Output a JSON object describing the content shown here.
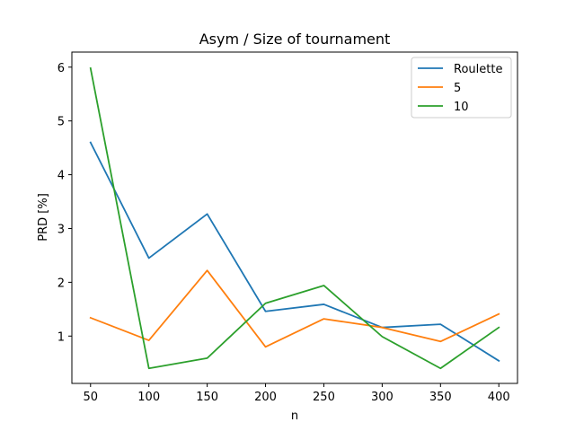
{
  "chart_data": {
    "type": "line",
    "title": "Asym / Size of tournament",
    "xlabel": "n",
    "ylabel": "PRD [%]",
    "x": [
      50,
      100,
      150,
      200,
      250,
      300,
      350,
      400
    ],
    "xlim": [
      34,
      416
    ],
    "ylim": [
      0.12,
      6.28
    ],
    "xticks": [
      50,
      100,
      150,
      200,
      250,
      300,
      350,
      400
    ],
    "yticks": [
      1,
      2,
      3,
      4,
      5,
      6
    ],
    "grid": false,
    "legend_position": "top-right",
    "series": [
      {
        "name": "Roulette",
        "color": "#1f77b4",
        "values": [
          4.6,
          2.45,
          3.27,
          1.46,
          1.59,
          1.16,
          1.22,
          0.54
        ]
      },
      {
        "name": "5",
        "color": "#ff7f0e",
        "values": [
          1.34,
          0.92,
          2.22,
          0.8,
          1.32,
          1.16,
          0.9,
          1.41
        ]
      },
      {
        "name": "10",
        "color": "#2ca02c",
        "values": [
          5.98,
          0.4,
          0.59,
          1.61,
          1.94,
          0.99,
          0.4,
          1.16
        ]
      }
    ]
  }
}
